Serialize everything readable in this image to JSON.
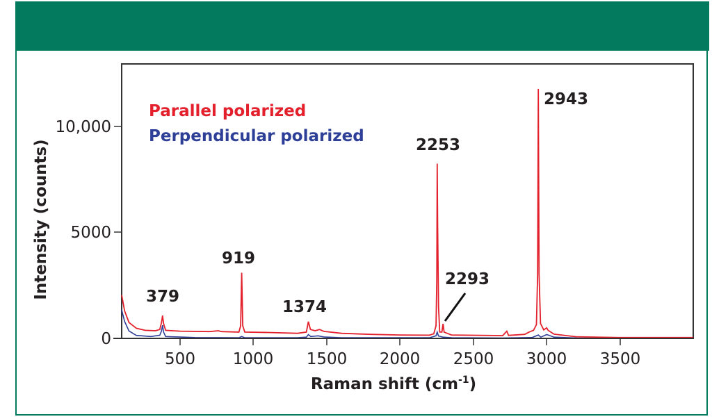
{
  "header": {
    "color": "#037a5e"
  },
  "chart_data": {
    "type": "line",
    "title": "",
    "xlabel": "Raman shift (cm-1)",
    "xlabel_main": "Raman shift (cm",
    "xlabel_sup": "-1",
    "xlabel_close": ")",
    "ylabel": "Intensity (counts)",
    "xlim": [
      100,
      4000
    ],
    "ylim": [
      0,
      12500
    ],
    "grid": false,
    "legend_position": "upper-left",
    "x_ticks": [
      500,
      1000,
      1500,
      2000,
      2500,
      3000,
      3500
    ],
    "x_tick_labels": [
      "500",
      "1000",
      "1500",
      "2000",
      "2500",
      "3000",
      "3500"
    ],
    "y_ticks": [
      0,
      5000,
      10000
    ],
    "y_tick_labels": [
      "0",
      "5000",
      "10,000"
    ],
    "series": [
      {
        "name": "Parallel polarized",
        "color": "#e3202c",
        "peaks": [
          {
            "x": 379,
            "y": 1080
          },
          {
            "x": 919,
            "y": 3100
          },
          {
            "x": 1374,
            "y": 790
          },
          {
            "x": 2253,
            "y": 8250
          },
          {
            "x": 2293,
            "y": 690
          },
          {
            "x": 2943,
            "y": 11780
          }
        ],
        "points": [
          [
            100,
            2050
          ],
          [
            120,
            1300
          ],
          [
            150,
            750
          ],
          [
            200,
            480
          ],
          [
            260,
            380
          ],
          [
            330,
            360
          ],
          [
            360,
            420
          ],
          [
            372,
            750
          ],
          [
            379,
            1080
          ],
          [
            386,
            700
          ],
          [
            400,
            380
          ],
          [
            500,
            340
          ],
          [
            700,
            320
          ],
          [
            760,
            360
          ],
          [
            780,
            320
          ],
          [
            900,
            300
          ],
          [
            912,
            600
          ],
          [
            919,
            3100
          ],
          [
            926,
            600
          ],
          [
            940,
            300
          ],
          [
            1100,
            280
          ],
          [
            1300,
            240
          ],
          [
            1360,
            300
          ],
          [
            1374,
            790
          ],
          [
            1388,
            420
          ],
          [
            1420,
            360
          ],
          [
            1450,
            420
          ],
          [
            1480,
            330
          ],
          [
            1600,
            240
          ],
          [
            1800,
            190
          ],
          [
            2000,
            160
          ],
          [
            2200,
            150
          ],
          [
            2230,
            220
          ],
          [
            2245,
            600
          ],
          [
            2250,
            2700
          ],
          [
            2253,
            8250
          ],
          [
            2256,
            5400
          ],
          [
            2262,
            1500
          ],
          [
            2270,
            300
          ],
          [
            2285,
            300
          ],
          [
            2293,
            690
          ],
          [
            2300,
            300
          ],
          [
            2350,
            160
          ],
          [
            2700,
            130
          ],
          [
            2728,
            340
          ],
          [
            2740,
            140
          ],
          [
            2850,
            190
          ],
          [
            2880,
            300
          ],
          [
            2910,
            380
          ],
          [
            2930,
            650
          ],
          [
            2938,
            3000
          ],
          [
            2943,
            11780
          ],
          [
            2948,
            3000
          ],
          [
            2958,
            700
          ],
          [
            2980,
            400
          ],
          [
            3000,
            500
          ],
          [
            3010,
            380
          ],
          [
            3050,
            200
          ],
          [
            3200,
            80
          ],
          [
            3500,
            40
          ],
          [
            4000,
            40
          ]
        ]
      },
      {
        "name": "Perpendicular polarized",
        "color": "#2e3f98",
        "points": [
          [
            100,
            1350
          ],
          [
            120,
            800
          ],
          [
            150,
            350
          ],
          [
            200,
            140
          ],
          [
            300,
            90
          ],
          [
            360,
            150
          ],
          [
            372,
            350
          ],
          [
            379,
            620
          ],
          [
            386,
            300
          ],
          [
            400,
            90
          ],
          [
            600,
            40
          ],
          [
            900,
            30
          ],
          [
            919,
            90
          ],
          [
            940,
            30
          ],
          [
            1300,
            30
          ],
          [
            1360,
            60
          ],
          [
            1374,
            180
          ],
          [
            1390,
            90
          ],
          [
            1440,
            120
          ],
          [
            1480,
            70
          ],
          [
            1600,
            30
          ],
          [
            2200,
            30
          ],
          [
            2245,
            120
          ],
          [
            2253,
            300
          ],
          [
            2262,
            110
          ],
          [
            2293,
            60
          ],
          [
            2350,
            30
          ],
          [
            2700,
            20
          ],
          [
            2900,
            40
          ],
          [
            2943,
            160
          ],
          [
            2960,
            60
          ],
          [
            3000,
            180
          ],
          [
            3010,
            160
          ],
          [
            3050,
            60
          ],
          [
            3200,
            20
          ],
          [
            4000,
            10
          ]
        ]
      }
    ],
    "annotations": [
      {
        "text": "379",
        "x": 379
      },
      {
        "text": "919",
        "x": 919
      },
      {
        "text": "1374",
        "x": 1374
      },
      {
        "text": "2253",
        "x": 2253
      },
      {
        "text": "2293",
        "x": 2293,
        "leader_line": true
      },
      {
        "text": "2943",
        "x": 2943
      }
    ]
  },
  "legend": {
    "items": [
      {
        "label": "Parallel polarized",
        "color": "#e3202c"
      },
      {
        "label": "Perpendicular polarized",
        "color": "#2e3f98"
      }
    ]
  }
}
